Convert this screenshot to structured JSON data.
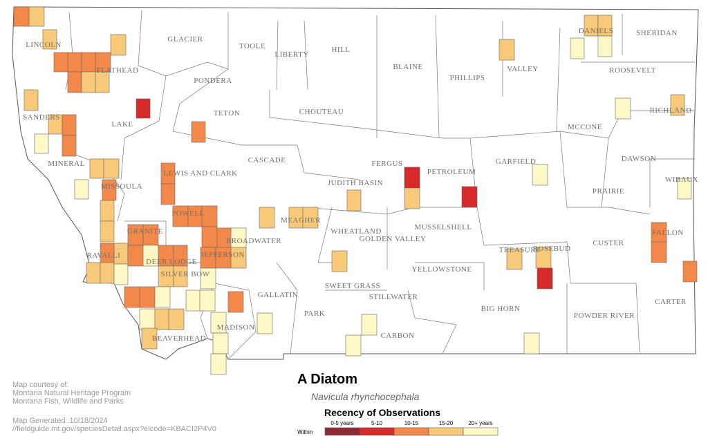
{
  "title": "A Diatom",
  "subtitle": "Navicula rhynchocephala",
  "credits": [
    "Map courtesy of:",
    "Montana Natural Heritage Program",
    "Montana Fish, Wildlife and Parks"
  ],
  "generated": [
    "Map Generated: 10/18/2024",
    "//fieldguide.mt.gov/speciesDetail.aspx?elcode=KBACI2P4V0"
  ],
  "legend": {
    "title": "Recency of Observations",
    "prefix": "Within",
    "items": [
      {
        "label": "0-5 years",
        "color": "#8c2a36"
      },
      {
        "label": "5-10",
        "color": "#d62a2a"
      },
      {
        "label": "10-15",
        "color": "#f2894a"
      },
      {
        "label": "15-20",
        "color": "#f7c978"
      },
      {
        "label": "20+ years",
        "color": "#fdf8c6"
      }
    ]
  },
  "counties": [
    "LINCOLN",
    "GLACIER",
    "TOOLE",
    "LIBERTY",
    "HILL",
    "BLAINE",
    "PHILLIPS",
    "VALLEY",
    "DANIELS",
    "SHERIDAN",
    "ROOSEVELT",
    "FLATHEAD",
    "PONDERA",
    "TETON",
    "CHOUTEAU",
    "SANDERS",
    "LAKE",
    "RICHLAND",
    "MCCONE",
    "GARFIELD",
    "DAWSON",
    "CASCADE",
    "FERGUS",
    "PETROLEUM",
    "MINERAL",
    "LEWIS AND CLARK",
    "JUDITH BASIN",
    "WIBAUX",
    "MISSOULA",
    "PRAIRIE",
    "POWELL",
    "MEAGHER",
    "WHEATLAND",
    "GOLDEN VALLEY",
    "MUSSELSHELL",
    "GRANITE",
    "FALLON",
    "BROADWATER",
    "CUSTER",
    "JEFFERSON",
    "TREASURE",
    "ROSEBUD",
    "RAVALLI",
    "DEER LODGE",
    "YELLOWSTONE",
    "SILVER BOW",
    "SWEET GRASS",
    "STILLWATER",
    "GALLATIN",
    "CARTER",
    "BIG HORN",
    "PARK",
    "POWDER RIVER",
    "MADISON",
    "CARBON",
    "BEAVERHEAD"
  ]
}
